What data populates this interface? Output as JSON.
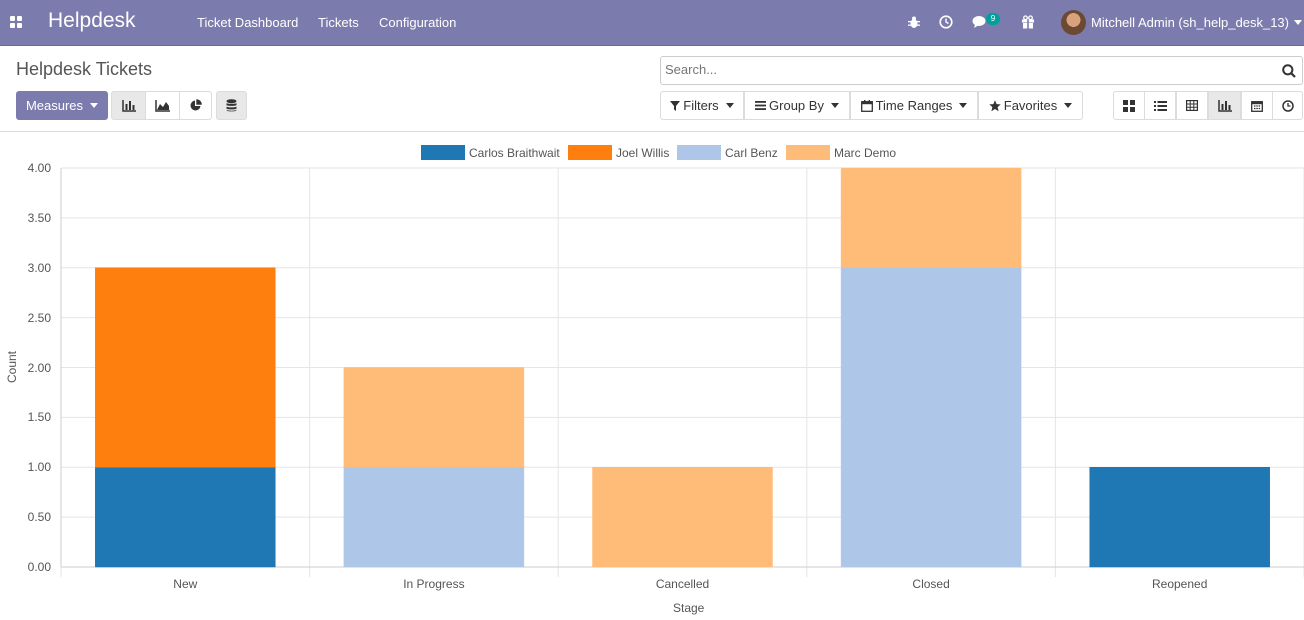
{
  "navbar": {
    "brand": "Helpdesk",
    "menu": [
      "Ticket Dashboard",
      "Tickets",
      "Configuration"
    ],
    "messages_badge": "9",
    "user": "Mitchell Admin (sh_help_desk_13)"
  },
  "control_panel": {
    "title": "Helpdesk Tickets",
    "search_placeholder": "Search...",
    "measures_label": "Measures",
    "filters_label": "Filters",
    "group_by_label": "Group By",
    "time_ranges_label": "Time Ranges",
    "favorites_label": "Favorites",
    "views": [
      "kanban-view",
      "list-view",
      "pivot-view",
      "graph-view",
      "calendar-view",
      "activity-view"
    ],
    "active_view": "graph-view",
    "graph_modes": [
      "bar",
      "line",
      "pie"
    ],
    "active_graph_mode": "bar",
    "stacked": true
  },
  "colors": {
    "navbar": "#7c7bad",
    "primary": "#7c7bad"
  },
  "chart_data": {
    "type": "bar",
    "stacked": true,
    "categories": [
      "New",
      "In Progress",
      "Cancelled",
      "Closed",
      "Reopened"
    ],
    "series": [
      {
        "name": "Carlos Braithwait",
        "color": "#1f77b4",
        "values": [
          1,
          0,
          0,
          0,
          1
        ]
      },
      {
        "name": "Joel Willis",
        "color": "#ff7f0e",
        "values": [
          2,
          0,
          0,
          0,
          0
        ]
      },
      {
        "name": "Carl Benz",
        "color": "#aec7e8",
        "values": [
          0,
          1,
          0,
          3,
          0
        ]
      },
      {
        "name": "Marc Demo",
        "color": "#ffbb78",
        "values": [
          0,
          1,
          1,
          1,
          0
        ]
      }
    ],
    "yticks": [
      "0.00",
      "0.50",
      "1.00",
      "1.50",
      "2.00",
      "2.50",
      "3.00",
      "3.50",
      "4.00"
    ],
    "ylim": [
      0,
      4
    ],
    "xlabel": "Stage",
    "ylabel": "Count",
    "legend_position": "top-center",
    "grid": true
  }
}
